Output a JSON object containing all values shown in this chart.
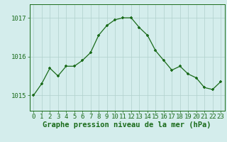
{
  "x": [
    0,
    1,
    2,
    3,
    4,
    5,
    6,
    7,
    8,
    9,
    10,
    11,
    12,
    13,
    14,
    15,
    16,
    17,
    18,
    19,
    20,
    21,
    22,
    23
  ],
  "y": [
    1015.0,
    1015.3,
    1015.7,
    1015.5,
    1015.75,
    1015.75,
    1015.9,
    1016.1,
    1016.55,
    1016.8,
    1016.95,
    1017.0,
    1017.0,
    1016.75,
    1016.55,
    1016.15,
    1015.9,
    1015.65,
    1015.75,
    1015.55,
    1015.45,
    1015.2,
    1015.15,
    1015.35
  ],
  "line_color": "#1a6b1a",
  "marker_color": "#1a6b1a",
  "bg_color": "#d4edec",
  "grid_color": "#b0d0cc",
  "axis_color": "#1a6b1a",
  "xlabel": "Graphe pression niveau de la mer (hPa)",
  "ylim_min": 1014.6,
  "ylim_max": 1017.35,
  "yticks": [
    1015,
    1016,
    1017
  ],
  "xticks": [
    0,
    1,
    2,
    3,
    4,
    5,
    6,
    7,
    8,
    9,
    10,
    11,
    12,
    13,
    14,
    15,
    16,
    17,
    18,
    19,
    20,
    21,
    22,
    23
  ],
  "tick_font_size": 6.5,
  "label_font_size": 7.5
}
